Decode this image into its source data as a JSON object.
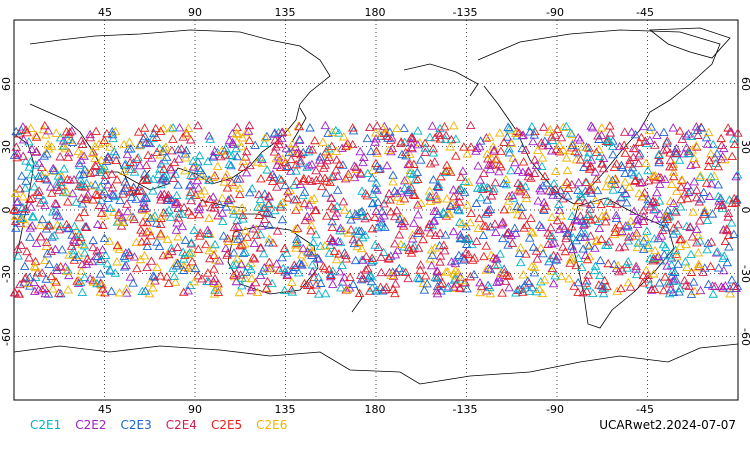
{
  "map": {
    "top_lon_ticks": [
      "45",
      "90",
      "135",
      "180",
      "-135",
      "-90",
      "-45"
    ],
    "bottom_lon_ticks": [
      "45",
      "90",
      "135",
      "180",
      "-135",
      "-90",
      "-45"
    ],
    "left_lat_ticks": [
      "60",
      "30",
      "0",
      "-30",
      "-60"
    ],
    "right_lat_ticks": [
      "60",
      "30",
      "0",
      "-30",
      "-60"
    ],
    "center_lon": 180,
    "lat_range": [
      -90,
      90
    ],
    "grid": "dotted",
    "marker": "open-triangle",
    "obs_lat_band": [
      -40,
      40
    ]
  },
  "legend": {
    "items": [
      {
        "label": "C2E1",
        "color": "#00b4c8"
      },
      {
        "label": "C2E2",
        "color": "#a020c8"
      },
      {
        "label": "C2E3",
        "color": "#1e64d2"
      },
      {
        "label": "C2E4",
        "color": "#d21e50"
      },
      {
        "label": "C2E5",
        "color": "#e61e1e"
      },
      {
        "label": "C2E6",
        "color": "#f0b400"
      }
    ]
  },
  "stamp": "UCARwet2.2024-07-07"
}
